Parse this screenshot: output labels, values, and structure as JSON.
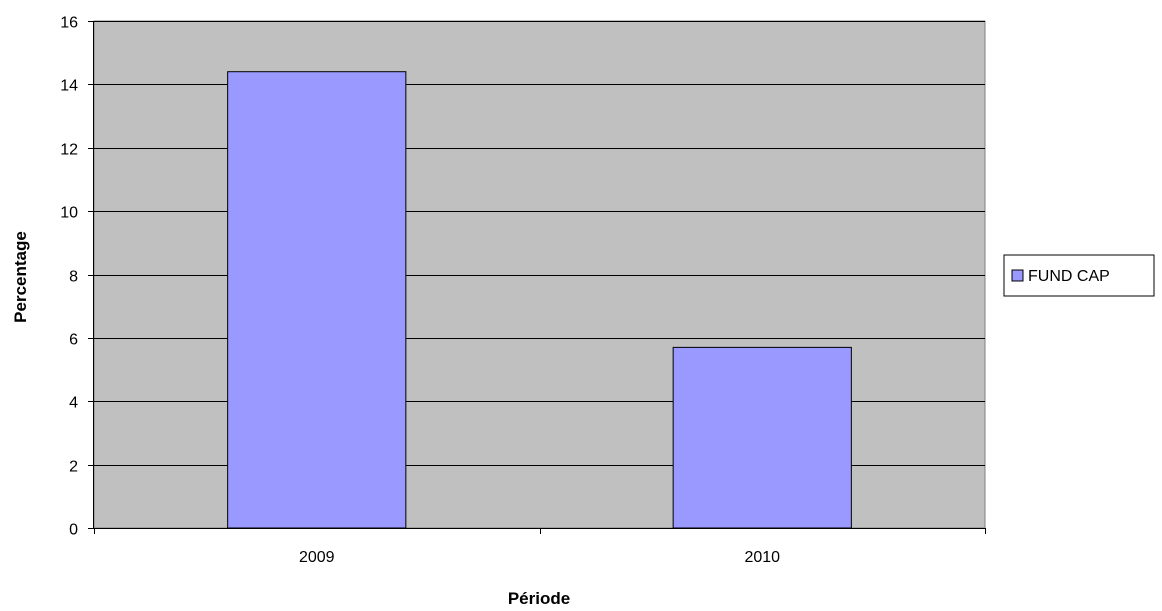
{
  "chart_data": {
    "type": "bar",
    "categories": [
      "2009",
      "2010"
    ],
    "series": [
      {
        "name": "FUND CAP",
        "values": [
          14.4,
          5.7
        ]
      }
    ],
    "title": "",
    "xlabel": "Période",
    "ylabel": "Percentage",
    "ylim": [
      0,
      16
    ],
    "yticks": [
      0,
      2,
      4,
      6,
      8,
      10,
      12,
      14,
      16
    ],
    "grid": true,
    "legend_position": "right",
    "colors": {
      "plot_background": "#c0c0c0",
      "bar_fill": "#9999ff",
      "bar_stroke": "#000000",
      "gridline": "#000000"
    }
  }
}
